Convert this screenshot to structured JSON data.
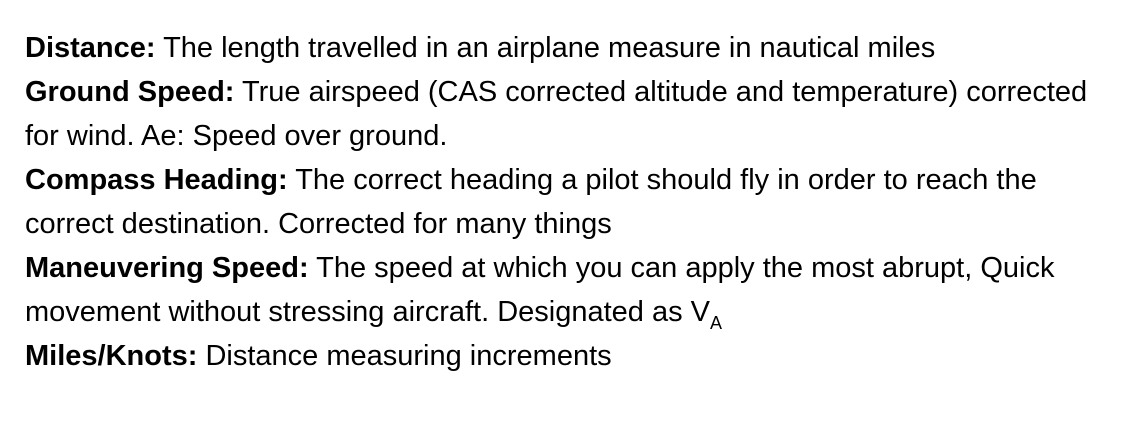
{
  "definitions": [
    {
      "term": "Distance:",
      "text": " The length travelled in an airplane measure in nautical miles"
    },
    {
      "term": "Ground Speed:",
      "text": " True airspeed (CAS corrected altitude and temperature) corrected for wind. Ae: Speed over ground."
    },
    {
      "term": "Compass Heading:",
      "text": " The correct heading a pilot should fly in order to reach the correct destination. Corrected for many things"
    },
    {
      "term": "Maneuvering Speed:",
      "text": " The speed at which you can apply the most abrupt, Quick movement without stressing aircraft. Designated as V",
      "subscript": "A"
    },
    {
      "term": "Miles/Knots:",
      "text": " Distance measuring increments"
    }
  ]
}
